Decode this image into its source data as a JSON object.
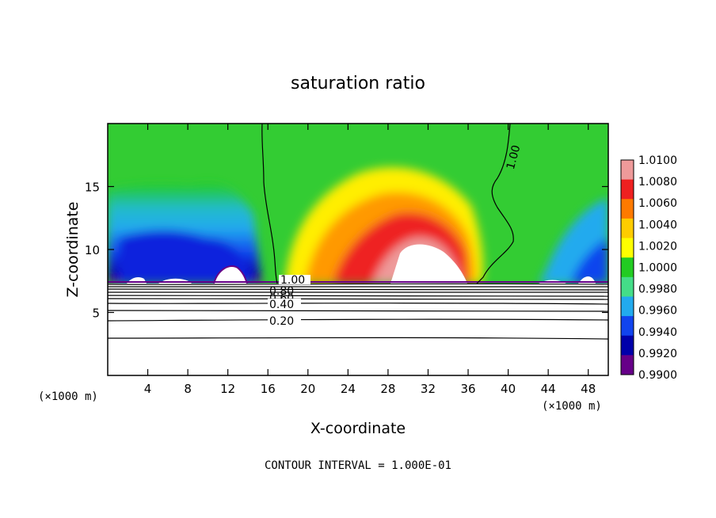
{
  "chart_data": {
    "type": "heatmap",
    "title": "saturation ratio",
    "xlabel": "X-coordinate",
    "ylabel": "Z-coordinate",
    "x_unit": "(×1000 m)",
    "y_unit": "(×1000 m)",
    "xlim": [
      0,
      50
    ],
    "ylim": [
      0,
      20
    ],
    "x_ticks": [
      4,
      8,
      12,
      16,
      20,
      24,
      28,
      32,
      36,
      40,
      44,
      48
    ],
    "y_ticks": [
      5,
      10,
      15
    ],
    "colorbar": {
      "levels": [
        "1.0100",
        "1.0080",
        "1.0060",
        "1.0040",
        "1.0020",
        "1.0000",
        "0.9980",
        "0.9960",
        "0.9940",
        "0.9920",
        "0.9900"
      ],
      "colors": [
        "#ee9a9a",
        "#ee2020",
        "#ff7a00",
        "#ffcc00",
        "#ffff00",
        "#22cc22",
        "#44dd88",
        "#22aaee",
        "#1144ee",
        "#0000aa",
        "#660088"
      ]
    },
    "contour_labels": [
      "1.00",
      "0.80",
      "0.60",
      "0.40",
      "0.20"
    ],
    "contour_interval_note": "CONTOUR INTERVAL = 1.000E-01"
  }
}
